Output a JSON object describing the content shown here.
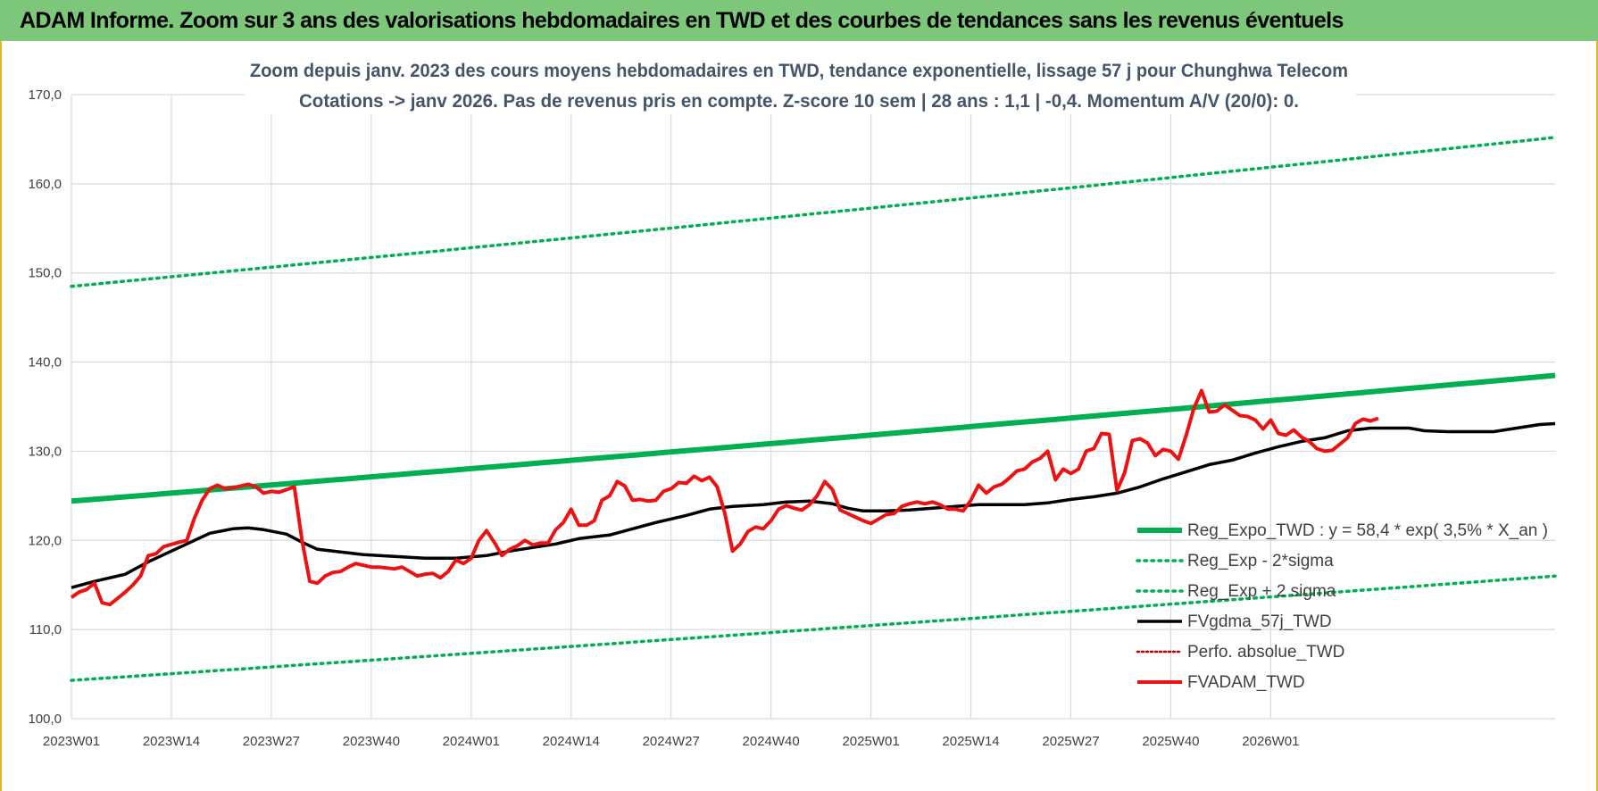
{
  "header": {
    "title": "ADAM Informe. Zoom sur 3 ans des valorisations hebdomadaires en TWD et des courbes de tendances sans les revenus éventuels"
  },
  "chart_data": {
    "type": "line",
    "title": "Zoom depuis janv. 2023 des cours moyens hebdomadaires en TWD, tendance exponentielle, lissage 57 j pour Chunghwa Telecom",
    "subtitle": "Cotations -> janv 2026. Pas de revenus pris en compte. Z-score 10 sem | 28 ans : 1,1 | -0,4. Momentum A/V (20/0): 0.",
    "ylim": [
      100,
      170
    ],
    "yticks": [
      "100,0",
      "110,0",
      "120,0",
      "130,0",
      "140,0",
      "150,0",
      "160,0",
      "170,0"
    ],
    "xlabels": [
      "2023W01",
      "2023W14",
      "2023W27",
      "2023W40",
      "2024W01",
      "2024W14",
      "2024W27",
      "2024W40",
      "2025W01",
      "2025W14",
      "2025W27",
      "2025W40",
      "2026W01"
    ],
    "x_weeks_total": 162,
    "grid": true,
    "legend_position": "right",
    "colors": {
      "trend": "#00b050",
      "band": "#00b050",
      "fvgdma": "#000000",
      "perfo": "#c00000",
      "fvadam": "#ee1111",
      "grid": "#d9d9d9",
      "header_bg": "#7dc77b"
    },
    "series": [
      {
        "name": "Reg_Expo_TWD : y = 58,4 * exp( 3,5% *  X_an )",
        "style": "thick",
        "start": 124.4,
        "end": 138.5
      },
      {
        "name": "Reg_Exp - 2*sigma",
        "style": "dotted",
        "start": 104.3,
        "end": 116.0
      },
      {
        "name": "Reg_Exp + 2 sigma",
        "style": "dotted",
        "start": 148.5,
        "end": 165.2
      },
      {
        "name": "FVgdma_57j_TWD",
        "style": "solid",
        "points": [
          [
            0,
            114.7
          ],
          [
            3,
            115.4
          ],
          [
            5,
            115.8
          ],
          [
            7,
            116.2
          ],
          [
            10,
            117.6
          ],
          [
            13,
            118.8
          ],
          [
            16,
            120.0
          ],
          [
            18,
            120.8
          ],
          [
            21,
            121.3
          ],
          [
            23,
            121.4
          ],
          [
            25,
            121.2
          ],
          [
            28,
            120.7
          ],
          [
            30,
            119.8
          ],
          [
            32,
            119.0
          ],
          [
            35,
            118.7
          ],
          [
            38,
            118.4
          ],
          [
            42,
            118.2
          ],
          [
            46,
            118.0
          ],
          [
            50,
            118.0
          ],
          [
            54,
            118.3
          ],
          [
            57,
            118.8
          ],
          [
            60,
            119.2
          ],
          [
            63,
            119.6
          ],
          [
            66,
            120.2
          ],
          [
            70,
            120.6
          ],
          [
            73,
            121.3
          ],
          [
            76,
            122.0
          ],
          [
            80,
            122.8
          ],
          [
            83,
            123.5
          ],
          [
            86,
            123.8
          ],
          [
            90,
            124.0
          ],
          [
            93,
            124.3
          ],
          [
            96,
            124.4
          ],
          [
            99,
            124.1
          ],
          [
            101,
            123.6
          ],
          [
            103,
            123.3
          ],
          [
            106,
            123.3
          ],
          [
            109,
            123.4
          ],
          [
            112,
            123.6
          ],
          [
            115,
            123.8
          ],
          [
            118,
            124.0
          ],
          [
            121,
            124.0
          ],
          [
            124,
            124.0
          ],
          [
            127,
            124.2
          ],
          [
            130,
            124.6
          ],
          [
            133,
            124.9
          ],
          [
            136,
            125.3
          ],
          [
            139,
            126.0
          ],
          [
            142,
            126.9
          ],
          [
            145,
            127.7
          ],
          [
            148,
            128.5
          ],
          [
            151,
            129.0
          ],
          [
            154,
            129.8
          ],
          [
            157,
            130.5
          ],
          [
            160,
            131.1
          ],
          [
            163,
            131.5
          ],
          [
            166,
            132.3
          ],
          [
            169,
            132.6
          ],
          [
            172,
            132.6
          ],
          [
            174,
            132.6
          ],
          [
            176,
            132.3
          ],
          [
            179,
            132.2
          ],
          [
            182,
            132.2
          ],
          [
            185,
            132.2
          ],
          [
            188,
            132.6
          ],
          [
            191,
            133.0
          ],
          [
            193,
            133.1
          ]
        ]
      },
      {
        "name": "Perfo. absolue_TWD",
        "style": "dotted-thin",
        "points": []
      },
      {
        "name": "FVADAM_TWD",
        "style": "solid-thick",
        "points": [
          [
            0,
            113.6
          ],
          [
            1,
            114.2
          ],
          [
            2,
            114.5
          ],
          [
            3,
            115.2
          ],
          [
            4,
            113.0
          ],
          [
            5,
            112.8
          ],
          [
            7,
            114.2
          ],
          [
            8,
            115.0
          ],
          [
            9,
            116.0
          ],
          [
            10,
            118.3
          ],
          [
            11,
            118.5
          ],
          [
            12,
            119.3
          ],
          [
            14,
            119.8
          ],
          [
            15,
            120.0
          ],
          [
            16,
            122.5
          ],
          [
            17,
            124.5
          ],
          [
            18,
            125.8
          ],
          [
            19,
            126.2
          ],
          [
            20,
            125.8
          ],
          [
            21,
            125.9
          ],
          [
            23,
            126.3
          ],
          [
            24,
            126.0
          ],
          [
            25,
            125.3
          ],
          [
            26,
            125.5
          ],
          [
            27,
            125.4
          ],
          [
            28,
            125.7
          ],
          [
            29,
            126.0
          ],
          [
            30,
            120.0
          ],
          [
            31,
            115.4
          ],
          [
            32,
            115.2
          ],
          [
            33,
            116.0
          ],
          [
            34,
            116.4
          ],
          [
            35,
            116.5
          ],
          [
            36,
            117.0
          ],
          [
            37,
            117.4
          ],
          [
            38,
            117.2
          ],
          [
            39,
            117.0
          ],
          [
            40,
            117.0
          ],
          [
            42,
            116.8
          ],
          [
            43,
            117.0
          ],
          [
            44,
            116.5
          ],
          [
            45,
            116.0
          ],
          [
            46,
            116.2
          ],
          [
            47,
            116.3
          ],
          [
            48,
            115.8
          ],
          [
            49,
            116.5
          ],
          [
            50,
            117.8
          ],
          [
            51,
            117.4
          ],
          [
            52,
            118.0
          ],
          [
            53,
            120.0
          ],
          [
            54,
            121.1
          ],
          [
            55,
            119.8
          ],
          [
            56,
            118.3
          ],
          [
            57,
            119.0
          ],
          [
            58,
            119.4
          ],
          [
            59,
            120.0
          ],
          [
            60,
            119.5
          ],
          [
            61,
            119.7
          ],
          [
            62,
            119.7
          ],
          [
            63,
            121.2
          ],
          [
            64,
            122.0
          ],
          [
            65,
            123.5
          ],
          [
            66,
            121.7
          ],
          [
            67,
            121.7
          ],
          [
            68,
            122.2
          ],
          [
            69,
            124.5
          ],
          [
            70,
            125.0
          ],
          [
            71,
            126.6
          ],
          [
            72,
            126.1
          ],
          [
            73,
            124.5
          ],
          [
            74,
            124.6
          ],
          [
            75,
            124.4
          ],
          [
            76,
            124.5
          ],
          [
            77,
            125.5
          ],
          [
            78,
            125.8
          ],
          [
            79,
            126.5
          ],
          [
            80,
            126.4
          ],
          [
            81,
            127.2
          ],
          [
            82,
            126.7
          ],
          [
            83,
            127.1
          ],
          [
            84,
            126.0
          ],
          [
            85,
            123.0
          ],
          [
            86,
            118.8
          ],
          [
            87,
            119.6
          ],
          [
            88,
            121.0
          ],
          [
            89,
            121.5
          ],
          [
            90,
            121.3
          ],
          [
            91,
            122.2
          ],
          [
            92,
            123.5
          ],
          [
            93,
            123.9
          ],
          [
            94,
            123.6
          ],
          [
            95,
            123.4
          ],
          [
            96,
            124.0
          ],
          [
            97,
            125.0
          ],
          [
            98,
            126.6
          ],
          [
            99,
            125.7
          ],
          [
            100,
            123.4
          ],
          [
            101,
            123.0
          ],
          [
            102,
            122.6
          ],
          [
            103,
            122.2
          ],
          [
            104,
            121.9
          ],
          [
            105,
            122.4
          ],
          [
            106,
            122.9
          ],
          [
            107,
            123.0
          ],
          [
            108,
            123.8
          ],
          [
            109,
            124.1
          ],
          [
            110,
            124.3
          ],
          [
            111,
            124.1
          ],
          [
            112,
            124.3
          ],
          [
            113,
            124.0
          ],
          [
            114,
            123.5
          ],
          [
            115,
            123.5
          ],
          [
            116,
            123.3
          ],
          [
            117,
            124.5
          ],
          [
            118,
            126.2
          ],
          [
            119,
            125.3
          ],
          [
            120,
            126.0
          ],
          [
            121,
            126.3
          ],
          [
            122,
            127.0
          ],
          [
            123,
            127.8
          ],
          [
            124,
            128.0
          ],
          [
            125,
            128.8
          ],
          [
            126,
            129.2
          ],
          [
            127,
            130.0
          ],
          [
            128,
            126.8
          ],
          [
            129,
            128.0
          ],
          [
            130,
            127.5
          ],
          [
            131,
            128.0
          ],
          [
            132,
            130.0
          ],
          [
            133,
            130.3
          ],
          [
            134,
            132.0
          ],
          [
            135,
            131.9
          ],
          [
            136,
            125.6
          ],
          [
            137,
            127.6
          ],
          [
            138,
            131.2
          ],
          [
            139,
            131.4
          ],
          [
            140,
            130.9
          ],
          [
            141,
            129.5
          ],
          [
            142,
            130.2
          ],
          [
            143,
            130.0
          ],
          [
            144,
            129.1
          ],
          [
            145,
            131.8
          ],
          [
            146,
            134.8
          ],
          [
            147,
            136.8
          ],
          [
            148,
            134.4
          ],
          [
            149,
            134.5
          ],
          [
            150,
            135.2
          ],
          [
            151,
            134.6
          ],
          [
            152,
            134.0
          ],
          [
            153,
            133.9
          ],
          [
            154,
            133.5
          ],
          [
            155,
            132.5
          ],
          [
            156,
            133.5
          ],
          [
            157,
            132.0
          ],
          [
            158,
            131.8
          ],
          [
            159,
            132.4
          ],
          [
            160,
            131.6
          ],
          [
            161,
            131.1
          ],
          [
            162,
            130.3
          ],
          [
            163,
            130.0
          ],
          [
            164,
            130.1
          ],
          [
            165,
            130.8
          ],
          [
            166,
            131.5
          ],
          [
            167,
            133.1
          ],
          [
            168,
            133.6
          ],
          [
            169,
            133.4
          ],
          [
            170,
            133.7
          ]
        ]
      }
    ]
  }
}
